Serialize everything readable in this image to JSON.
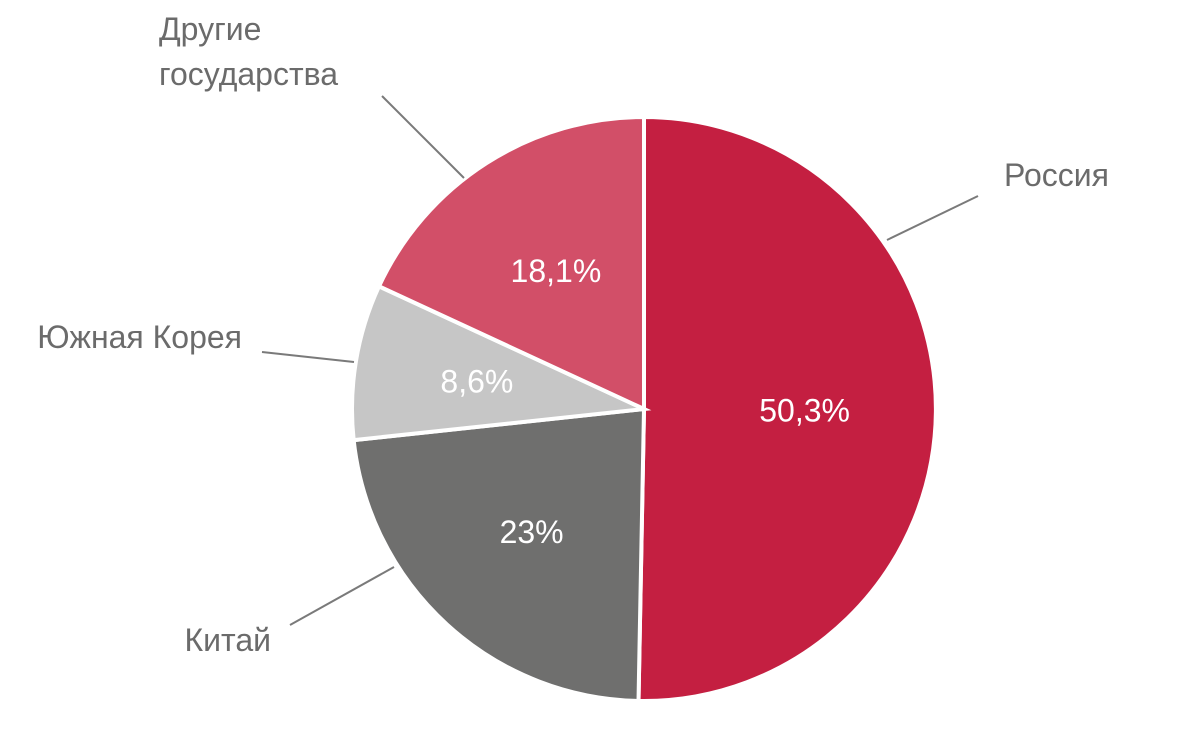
{
  "chart_data": {
    "type": "pie",
    "title": "",
    "slices": [
      {
        "name": "Россия",
        "value": 50.3,
        "label": "50,3%",
        "color": "#c41f41"
      },
      {
        "name": "Китай",
        "value": 23,
        "label": "23%",
        "color": "#6f6f6e"
      },
      {
        "name": "Южная Корея",
        "value": 8.6,
        "label": "8,6%",
        "color": "#c6c6c6"
      },
      {
        "name": "Другие государства",
        "label_lines": [
          "Другие",
          "государства"
        ],
        "value": 18.1,
        "label": "18,1%",
        "color": "#d24f68"
      }
    ],
    "start": "12 o'clock",
    "direction": "clockwise",
    "legend": "none",
    "labels": "outside with leader lines"
  }
}
